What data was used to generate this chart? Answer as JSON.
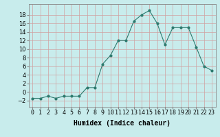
{
  "x": [
    0,
    1,
    2,
    3,
    4,
    5,
    6,
    7,
    8,
    9,
    10,
    11,
    12,
    13,
    14,
    15,
    16,
    17,
    18,
    19,
    20,
    21,
    22,
    23
  ],
  "y": [
    -1.5,
    -1.5,
    -1,
    -1.5,
    -1,
    -1,
    -1,
    1,
    1,
    6.5,
    8.5,
    12,
    12,
    16.5,
    18,
    19,
    16,
    11,
    15,
    15,
    15,
    10.5,
    6,
    5
  ],
  "line_color": "#2d7a6e",
  "marker": "o",
  "marker_size": 2,
  "bg_color": "#c8ecec",
  "grid_color": "#b8d8d8",
  "axis_label": "Humidex (Indice chaleur)",
  "xlim": [
    -0.5,
    23.5
  ],
  "ylim": [
    -3.5,
    20.5
  ],
  "yticks": [
    -2,
    0,
    2,
    4,
    6,
    8,
    10,
    12,
    14,
    16,
    18
  ],
  "xtick_labels": [
    "0",
    "1",
    "2",
    "3",
    "4",
    "5",
    "6",
    "7",
    "8",
    "9",
    "10",
    "11",
    "12",
    "13",
    "14",
    "15",
    "16",
    "17",
    "18",
    "19",
    "20",
    "21",
    "22",
    "23"
  ],
  "label_fontsize": 7,
  "tick_fontsize": 6
}
